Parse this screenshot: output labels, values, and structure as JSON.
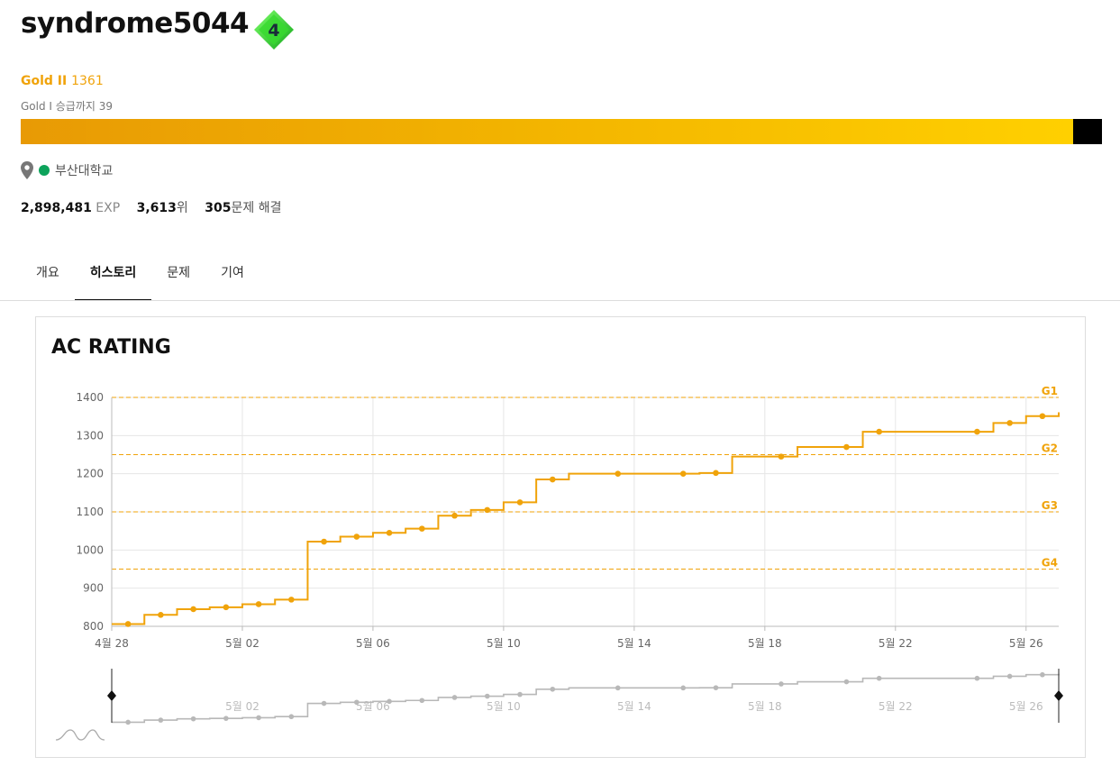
{
  "profile": {
    "username": "syndrome5044",
    "level_badge": "4",
    "tier_name": "Gold II",
    "tier_rating": "1361",
    "promotion_text": "Gold I 승급까지 39",
    "progress": 0.973,
    "school": "부산대학교",
    "stats": {
      "exp_value": "2,898,481",
      "exp_unit": "EXP",
      "rank_value": "3,613",
      "rank_unit": "위",
      "solved_value": "305",
      "solved_unit": "문제 해결"
    }
  },
  "colors": {
    "gold": "#f0a30a",
    "badge_green": "#2ecc40",
    "status_green": "#0da35b",
    "navigator_gray": "#b8b8b8"
  },
  "tabs": [
    {
      "label": "개요",
      "active": false
    },
    {
      "label": "히스토리",
      "active": true
    },
    {
      "label": "문제",
      "active": false
    },
    {
      "label": "기여",
      "active": false
    }
  ],
  "chart_data": {
    "type": "line",
    "title": "AC RATING",
    "step": true,
    "ylim": [
      800,
      1400
    ],
    "yticks": [
      800,
      900,
      1000,
      1100,
      1200,
      1300,
      1400
    ],
    "xlim_day": [
      0,
      29
    ],
    "xtick_labels": [
      "4월 28",
      "5월 02",
      "5월 06",
      "5월 10",
      "5월 14",
      "5월 18",
      "5월 22",
      "5월 26"
    ],
    "xtick_days": [
      0,
      4,
      8,
      12,
      16,
      20,
      24,
      28
    ],
    "reference_lines": [
      {
        "label": "G1",
        "value": 1400
      },
      {
        "label": "G2",
        "value": 1250
      },
      {
        "label": "G3",
        "value": 1100
      },
      {
        "label": "G4",
        "value": 950
      }
    ],
    "series": [
      {
        "points": [
          {
            "day": 0.5,
            "value": 806
          },
          {
            "day": 1.5,
            "value": 830
          },
          {
            "day": 2.5,
            "value": 845
          },
          {
            "day": 3.5,
            "value": 850
          },
          {
            "day": 4.5,
            "value": 858
          },
          {
            "day": 5.5,
            "value": 870
          },
          {
            "day": 6.5,
            "value": 1022
          },
          {
            "day": 7.5,
            "value": 1035
          },
          {
            "day": 8.5,
            "value": 1045
          },
          {
            "day": 9.5,
            "value": 1056
          },
          {
            "day": 10.5,
            "value": 1090
          },
          {
            "day": 11.5,
            "value": 1105
          },
          {
            "day": 12.5,
            "value": 1125
          },
          {
            "day": 13.5,
            "value": 1185
          },
          {
            "day": 15.5,
            "value": 1200
          },
          {
            "day": 17.5,
            "value": 1200
          },
          {
            "day": 18.5,
            "value": 1202
          },
          {
            "day": 20.5,
            "value": 1245
          },
          {
            "day": 22.5,
            "value": 1270
          },
          {
            "day": 23.5,
            "value": 1310
          },
          {
            "day": 26.5,
            "value": 1310
          },
          {
            "day": 27.5,
            "value": 1333
          },
          {
            "day": 28.5,
            "value": 1351
          },
          {
            "day": 29.5,
            "value": 1361
          }
        ]
      }
    ],
    "navigator_tick_labels": [
      "5월 02",
      "5월 06",
      "5월 10",
      "5월 14",
      "5월 18",
      "5월 22",
      "5월 26"
    ]
  }
}
